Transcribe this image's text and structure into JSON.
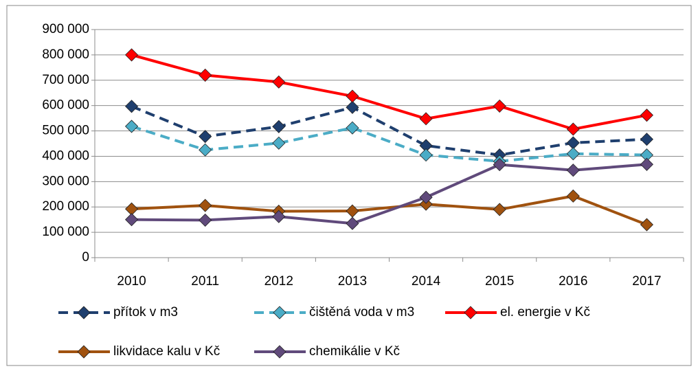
{
  "chart_data": {
    "type": "line",
    "categories": [
      "2010",
      "2011",
      "2012",
      "2013",
      "2014",
      "2015",
      "2016",
      "2017"
    ],
    "series": [
      {
        "name": "přítok v m3",
        "color": "#1f3f6e",
        "style": "dashed",
        "values": [
          597000,
          478000,
          517000,
          593000,
          442000,
          405000,
          453000,
          467000
        ]
      },
      {
        "name": "čištěná voda v m3",
        "color": "#4bacc6",
        "style": "dashed",
        "values": [
          518000,
          425000,
          452000,
          512000,
          405000,
          380000,
          410000,
          405000
        ]
      },
      {
        "name": "el. energie v Kč",
        "color": "#ff0000",
        "style": "solid",
        "values": [
          800000,
          720000,
          693000,
          637000,
          548000,
          598000,
          507000,
          562000
        ]
      },
      {
        "name": "likvidace kalu v Kč",
        "color": "#a0520f",
        "style": "solid",
        "values": [
          192000,
          206000,
          183000,
          184000,
          211000,
          190000,
          243000,
          130000
        ]
      },
      {
        "name": "chemikálie v Kč",
        "color": "#604a7b",
        "style": "solid",
        "values": [
          150000,
          148000,
          162000,
          135000,
          238000,
          367000,
          345000,
          368000
        ]
      }
    ],
    "ylim": [
      0,
      900000
    ],
    "yticks": [
      0,
      {
        "value": 100000,
        "label": "100 000"
      },
      {
        "value": 200000,
        "label": "200 000"
      },
      {
        "value": 300000,
        "label": "300 000"
      },
      {
        "value": 400000,
        "label": "400 000"
      },
      {
        "value": 500000,
        "label": "500 000"
      },
      {
        "value": 600000,
        "label": "600 000"
      },
      {
        "value": 700000,
        "label": "700 000"
      },
      {
        "value": 800000,
        "label": "800 000"
      },
      {
        "value": 900000,
        "label": "900 000"
      }
    ],
    "grid": true,
    "legend": "bottom"
  }
}
